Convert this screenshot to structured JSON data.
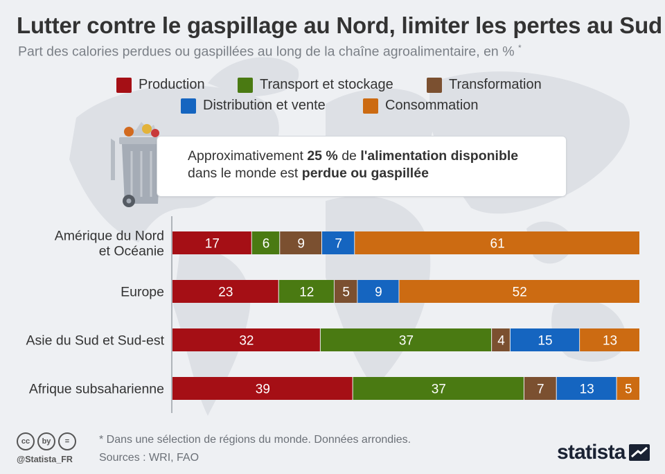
{
  "header": {
    "title": "Lutter contre le gaspillage au Nord, limiter les pertes au Sud",
    "subtitle": "Part des calories perdues ou gaspillées au long de la chaîne agroalimentaire, en %",
    "subtitle_mark": "*"
  },
  "callout": {
    "part1": "Approximativement ",
    "bold1": "25 %",
    "part2": " de ",
    "bold2": "l'alimentation disponible",
    "part3": "dans le monde est ",
    "bold3": "perdue ou gaspillée"
  },
  "chart_data": {
    "type": "bar",
    "orientation": "horizontal",
    "stacked": true,
    "categories": [
      "Amérique du Nord\net Océanie",
      "Europe",
      "Asie du Sud et Sud-est",
      "Afrique subsaharienne"
    ],
    "series": [
      {
        "name": "Production",
        "color": "#a50f15",
        "values": [
          17,
          23,
          32,
          39
        ]
      },
      {
        "name": "Transport et stockage",
        "color": "#4a7a12",
        "values": [
          6,
          12,
          37,
          37
        ]
      },
      {
        "name": "Transformation",
        "color": "#7b5030",
        "values": [
          9,
          5,
          4,
          7
        ]
      },
      {
        "name": "Distribution et vente",
        "color": "#1565c0",
        "values": [
          7,
          9,
          15,
          13
        ]
      },
      {
        "name": "Consommation",
        "color": "#cc6b12",
        "values": [
          61,
          52,
          13,
          5
        ]
      }
    ],
    "legend_position": "top",
    "grid": false
  },
  "footer": {
    "footnote": "* Dans une sélection de régions du monde. Données arrondies.",
    "sources": "Sources : WRI, FAO",
    "handle": "@Statista_FR",
    "cc_icons": [
      "cc",
      "by",
      "="
    ],
    "brand": "statista"
  }
}
